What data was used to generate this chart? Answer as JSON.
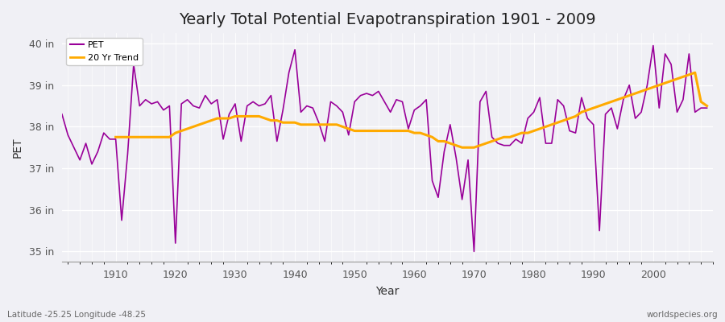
{
  "title": "Yearly Total Potential Evapotranspiration 1901 - 2009",
  "ylabel": "PET",
  "xlabel": "Year",
  "footnote_left": "Latitude -25.25 Longitude -48.25",
  "footnote_right": "worldspecies.org",
  "pet_color": "#990099",
  "trend_color": "#ffaa00",
  "bg_color": "#f0f0f5",
  "ylim": [
    34.75,
    40.25
  ],
  "yticks": [
    35,
    36,
    37,
    38,
    39,
    40
  ],
  "ytick_labels": [
    "35 in",
    "36 in",
    "37 in",
    "38 in",
    "39 in",
    "40 in"
  ],
  "years": [
    1901,
    1902,
    1903,
    1904,
    1905,
    1906,
    1907,
    1908,
    1909,
    1910,
    1911,
    1912,
    1913,
    1914,
    1915,
    1916,
    1917,
    1918,
    1919,
    1920,
    1921,
    1922,
    1923,
    1924,
    1925,
    1926,
    1927,
    1928,
    1929,
    1930,
    1931,
    1932,
    1933,
    1934,
    1935,
    1936,
    1937,
    1938,
    1939,
    1940,
    1941,
    1942,
    1943,
    1944,
    1945,
    1946,
    1947,
    1948,
    1949,
    1950,
    1951,
    1952,
    1953,
    1954,
    1955,
    1956,
    1957,
    1958,
    1959,
    1960,
    1961,
    1962,
    1963,
    1964,
    1965,
    1966,
    1967,
    1968,
    1969,
    1970,
    1971,
    1972,
    1973,
    1974,
    1975,
    1976,
    1977,
    1978,
    1979,
    1980,
    1981,
    1982,
    1983,
    1984,
    1985,
    1986,
    1987,
    1988,
    1989,
    1990,
    1991,
    1992,
    1993,
    1994,
    1995,
    1996,
    1997,
    1998,
    1999,
    2000,
    2001,
    2002,
    2003,
    2004,
    2005,
    2006,
    2007,
    2008,
    2009
  ],
  "pet": [
    38.3,
    37.8,
    37.5,
    37.2,
    37.6,
    37.1,
    37.4,
    37.85,
    37.7,
    37.7,
    35.75,
    37.35,
    39.5,
    38.5,
    38.65,
    38.55,
    38.6,
    38.4,
    38.5,
    35.2,
    38.55,
    38.65,
    38.5,
    38.45,
    38.75,
    38.55,
    38.65,
    37.7,
    38.3,
    38.55,
    37.65,
    38.5,
    38.6,
    38.5,
    38.55,
    38.75,
    37.65,
    38.4,
    39.3,
    39.85,
    38.35,
    38.5,
    38.45,
    38.1,
    37.65,
    38.6,
    38.5,
    38.35,
    37.8,
    38.6,
    38.75,
    38.8,
    38.75,
    38.85,
    38.6,
    38.35,
    38.65,
    38.6,
    37.95,
    38.4,
    38.5,
    38.65,
    36.7,
    36.3,
    37.4,
    38.05,
    37.25,
    36.25,
    37.2,
    35.0,
    38.6,
    38.85,
    37.75,
    37.6,
    37.55,
    37.55,
    37.7,
    37.6,
    38.2,
    38.35,
    38.7,
    37.6,
    37.6,
    38.65,
    38.5,
    37.9,
    37.85,
    38.7,
    38.2,
    38.05,
    35.5,
    38.3,
    38.45,
    37.95,
    38.65,
    39.0,
    38.2,
    38.35,
    39.0,
    39.95,
    38.45,
    39.75,
    39.5,
    38.35,
    38.65,
    39.75,
    38.35,
    38.45,
    38.45
  ],
  "trend": [
    null,
    null,
    null,
    null,
    null,
    null,
    null,
    null,
    null,
    37.75,
    37.75,
    37.75,
    37.75,
    37.75,
    37.75,
    37.75,
    37.75,
    37.75,
    37.75,
    37.85,
    37.9,
    37.95,
    38.0,
    38.05,
    38.1,
    38.15,
    38.2,
    38.2,
    38.2,
    38.25,
    38.25,
    38.25,
    38.25,
    38.25,
    38.2,
    38.15,
    38.15,
    38.1,
    38.1,
    38.1,
    38.05,
    38.05,
    38.05,
    38.05,
    38.05,
    38.05,
    38.05,
    38.0,
    37.95,
    37.9,
    37.9,
    37.9,
    37.9,
    37.9,
    37.9,
    37.9,
    37.9,
    37.9,
    37.9,
    37.85,
    37.85,
    37.8,
    37.75,
    37.65,
    37.65,
    37.6,
    37.55,
    37.5,
    37.5,
    37.5,
    37.55,
    37.6,
    37.65,
    37.7,
    37.75,
    37.75,
    37.8,
    37.85,
    37.85,
    37.9,
    37.95,
    38.0,
    38.05,
    38.1,
    38.15,
    38.2,
    38.25,
    38.35,
    38.4,
    38.45,
    38.5,
    38.55,
    38.6,
    38.65,
    38.7,
    38.75,
    38.8,
    38.85,
    38.9,
    38.95,
    39.0,
    39.05,
    39.1,
    39.15,
    39.2,
    39.25,
    39.3,
    38.6,
    38.5
  ],
  "xticks": [
    1910,
    1920,
    1930,
    1940,
    1950,
    1960,
    1970,
    1980,
    1990,
    2000
  ],
  "title_fontsize": 14,
  "axis_fontsize": 9,
  "label_fontsize": 10
}
